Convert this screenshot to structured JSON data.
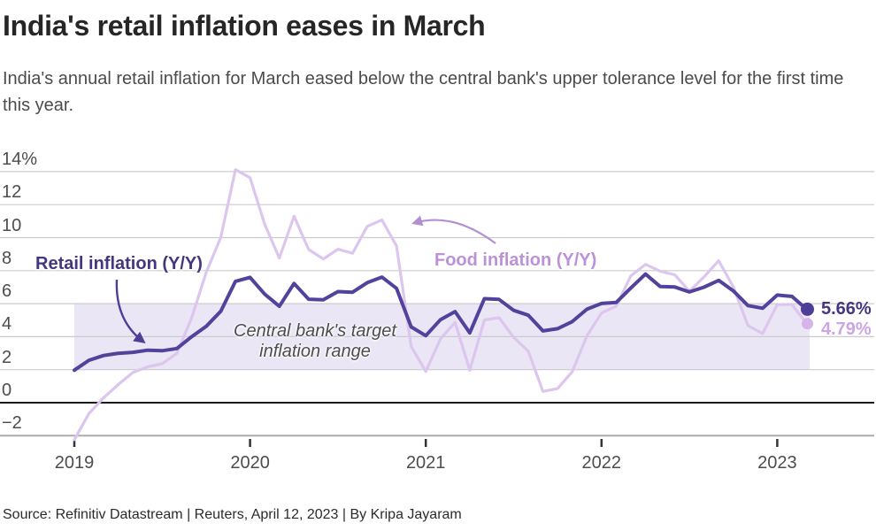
{
  "header": {
    "title": "India's retail inflation eases in March",
    "subtitle": "India's annual retail inflation for March eased below the central bank's upper tolerance level for the first time this year."
  },
  "chart_data": {
    "type": "line",
    "title": "India's retail inflation eases in March",
    "frequency": "monthly",
    "x_start": "2019-01",
    "x_end": "2023-03",
    "xlabel": "",
    "ylabel": "",
    "ylim": [
      -3.3,
      15.3
    ],
    "grid": "horizontal",
    "x_axis": {
      "ticks": [
        {
          "label": "2019",
          "month_index": 0
        },
        {
          "label": "2020",
          "month_index": 12
        },
        {
          "label": "2021",
          "month_index": 24
        },
        {
          "label": "2022",
          "month_index": 36
        },
        {
          "label": "2023",
          "month_index": 48
        }
      ]
    },
    "y_axis": {
      "ticks": [
        {
          "value": 14,
          "label": "14%"
        },
        {
          "value": 12,
          "label": "12"
        },
        {
          "value": 10,
          "label": "10"
        },
        {
          "value": 8,
          "label": "8"
        },
        {
          "value": 6,
          "label": "6"
        },
        {
          "value": 4,
          "label": "4"
        },
        {
          "value": 2,
          "label": "2"
        },
        {
          "value": 0,
          "label": "0"
        },
        {
          "value": -2,
          "label": "−2"
        }
      ]
    },
    "target_band": {
      "from": 2,
      "to": 6,
      "fill": "#EAE6F5",
      "label_line1": "Central bank's target",
      "label_line2": "inflation range"
    },
    "series": [
      {
        "name": "Retail inflation (Y/Y)",
        "line_color": "#52429B",
        "label_color": "#46357F",
        "dot_color": "#4F3E95",
        "arrow_color": "#4F3E95",
        "end_label": "5.66%",
        "end_value": 5.66,
        "values": [
          1.97,
          2.57,
          2.86,
          2.99,
          3.05,
          3.18,
          3.15,
          3.28,
          3.99,
          4.62,
          5.54,
          7.35,
          7.59,
          6.58,
          5.84,
          7.22,
          6.27,
          6.23,
          6.73,
          6.69,
          7.27,
          7.61,
          6.93,
          4.59,
          4.06,
          5.03,
          5.52,
          4.23,
          6.3,
          6.26,
          5.59,
          5.3,
          4.35,
          4.48,
          4.91,
          5.66,
          6.01,
          6.07,
          6.95,
          7.79,
          7.04,
          7.01,
          6.71,
          7.0,
          7.41,
          6.77,
          5.88,
          5.72,
          6.52,
          6.44,
          5.66
        ]
      },
      {
        "name": "Food inflation (Y/Y)",
        "line_color": "#DCC6EE",
        "label_color": "#BB92D7",
        "dot_color": "#D8B3EA",
        "arrow_color": "#B18FD0",
        "end_label": "4.79%",
        "end_value": 4.79,
        "values": [
          -2.24,
          -0.66,
          0.3,
          1.1,
          1.83,
          2.17,
          2.36,
          2.99,
          5.11,
          7.89,
          10.01,
          14.12,
          13.63,
          10.81,
          8.76,
          11.3,
          9.28,
          8.7,
          9.3,
          9.05,
          10.68,
          11.07,
          9.5,
          3.41,
          1.89,
          3.87,
          4.87,
          1.96,
          5.01,
          5.15,
          3.96,
          3.11,
          0.68,
          0.85,
          1.87,
          4.05,
          5.43,
          5.85,
          7.68,
          8.38,
          7.97,
          7.75,
          6.75,
          7.62,
          8.6,
          7.01,
          4.67,
          4.19,
          5.94,
          5.95,
          4.79
        ]
      }
    ],
    "legend_position": "annotated-on-chart"
  },
  "footer": {
    "source": "Source: Refinitiv Datastream | Reuters, April 12, 2023 | By Kripa Jayaram"
  }
}
